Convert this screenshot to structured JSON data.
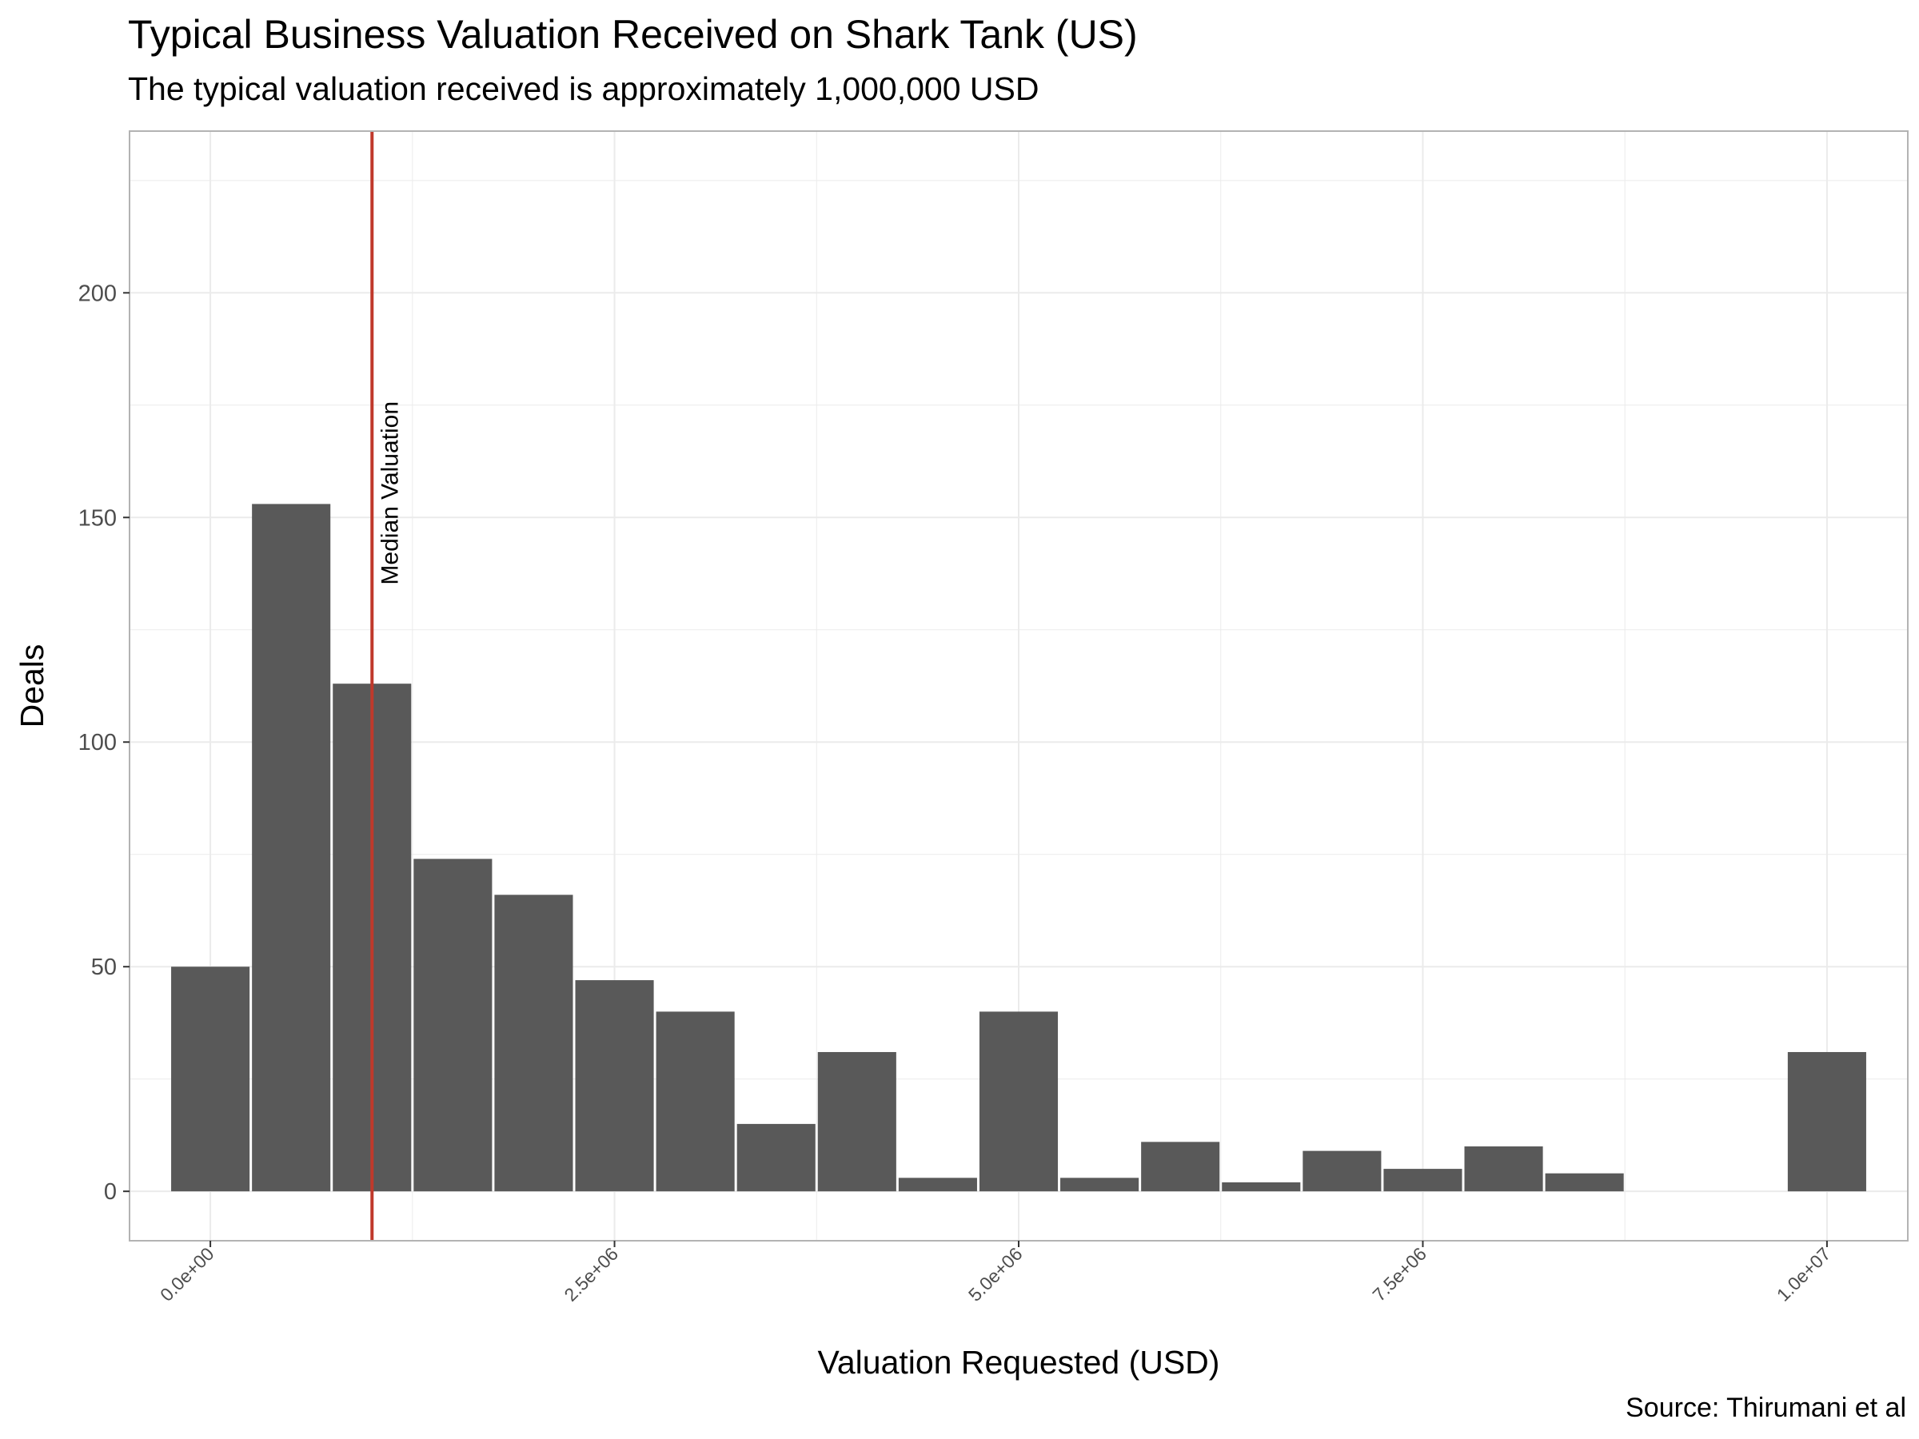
{
  "header": {
    "title": "Typical Business Valuation Received on Shark Tank (US)",
    "subtitle": "The typical valuation received is approximately 1,000,000 USD"
  },
  "footer": {
    "caption": "Source: Thirumani et al"
  },
  "colors": {
    "bar": "#595959",
    "median_line": "#c0392b",
    "grid": "#ebebeb",
    "panel_border": "#b3b3b3"
  },
  "chart_data": {
    "type": "bar",
    "title": "Typical Business Valuation Received on Shark Tank (US)",
    "subtitle": "The typical valuation received is approximately 1,000,000 USD",
    "xlabel": "Valuation Requested (USD)",
    "ylabel": "Deals",
    "bin_width": 500000,
    "bins": [
      {
        "center": 0,
        "count": 50
      },
      {
        "center": 500000,
        "count": 153
      },
      {
        "center": 1000000,
        "count": 113
      },
      {
        "center": 1500000,
        "count": 74
      },
      {
        "center": 2000000,
        "count": 66
      },
      {
        "center": 2500000,
        "count": 47
      },
      {
        "center": 3000000,
        "count": 40
      },
      {
        "center": 3500000,
        "count": 15
      },
      {
        "center": 4000000,
        "count": 31
      },
      {
        "center": 4500000,
        "count": 3
      },
      {
        "center": 5000000,
        "count": 40
      },
      {
        "center": 5500000,
        "count": 3
      },
      {
        "center": 6000000,
        "count": 11
      },
      {
        "center": 6500000,
        "count": 2
      },
      {
        "center": 7000000,
        "count": 9
      },
      {
        "center": 7500000,
        "count": 5
      },
      {
        "center": 8000000,
        "count": 10
      },
      {
        "center": 8500000,
        "count": 4
      },
      {
        "center": 10000000,
        "count": 31
      }
    ],
    "xlim": [
      -500000,
      10500000
    ],
    "ylim": [
      -11,
      236
    ],
    "x_ticks": [
      {
        "value": 0,
        "label": "0.0e+00"
      },
      {
        "value": 2500000,
        "label": "2.5e+06"
      },
      {
        "value": 5000000,
        "label": "5.0e+06"
      },
      {
        "value": 7500000,
        "label": "7.5e+06"
      },
      {
        "value": 10000000,
        "label": "1.0e+07"
      }
    ],
    "y_ticks": [
      {
        "value": 0,
        "label": "0"
      },
      {
        "value": 50,
        "label": "50"
      },
      {
        "value": 100,
        "label": "100"
      },
      {
        "value": 150,
        "label": "150"
      },
      {
        "value": 200,
        "label": "200"
      }
    ],
    "median": {
      "value": 1000000,
      "label": "Median Valuation",
      "label_y": 135
    },
    "grid": true,
    "legend": "none"
  }
}
